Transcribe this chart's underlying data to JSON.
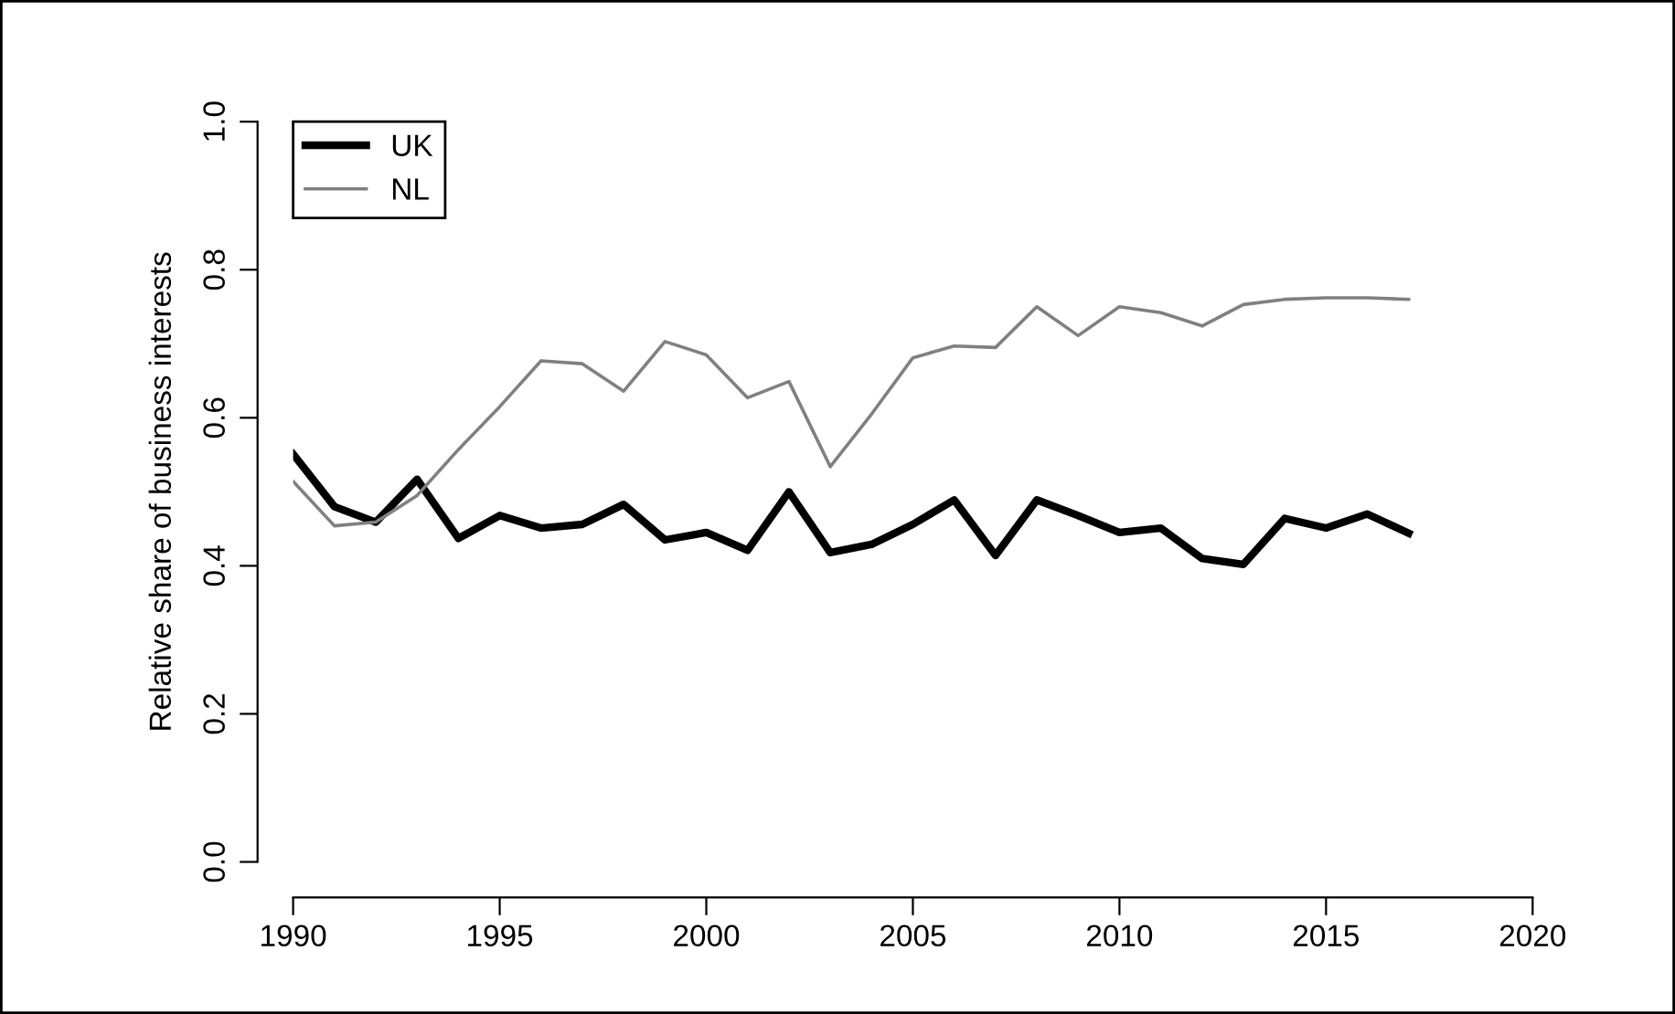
{
  "chart_data": {
    "type": "line",
    "ylabel": "Relative share of business interests",
    "x": [
      1990,
      1991,
      1992,
      1993,
      1994,
      1995,
      1996,
      1997,
      1998,
      1999,
      2000,
      2001,
      2002,
      2003,
      2004,
      2005,
      2006,
      2007,
      2008,
      2009,
      2010,
      2011,
      2012,
      2013,
      2014,
      2015,
      2016,
      2017
    ],
    "series": [
      {
        "name": "UK",
        "color": "#000000",
        "values": [
          0.551,
          0.48,
          0.459,
          0.517,
          0.437,
          0.468,
          0.451,
          0.456,
          0.483,
          0.435,
          0.445,
          0.421,
          0.5,
          0.418,
          0.429,
          0.456,
          0.489,
          0.414,
          0.489,
          0.468,
          0.445,
          0.451,
          0.41,
          0.402,
          0.464,
          0.451,
          0.47,
          0.444
        ]
      },
      {
        "name": "NL",
        "color": "#808080",
        "values": [
          0.514,
          0.454,
          0.459,
          0.495,
          0.557,
          0.615,
          0.677,
          0.673,
          0.636,
          0.703,
          0.685,
          0.627,
          0.649,
          0.534,
          0.605,
          0.681,
          0.697,
          0.695,
          0.75,
          0.711,
          0.75,
          0.742,
          0.724,
          0.753,
          0.76,
          0.762,
          0.762,
          0.76
        ]
      }
    ],
    "xlim": [
      1990,
      2020
    ],
    "xticks": [
      1990,
      1995,
      2000,
      2005,
      2010,
      2015,
      2020
    ],
    "ylim": [
      0,
      1
    ],
    "yticks": [
      {
        "value": 0,
        "label": "0.0"
      },
      {
        "value": 0.2,
        "label": "0.2"
      },
      {
        "value": 0.4,
        "label": "0.4"
      },
      {
        "value": 0.6,
        "label": "0.6"
      },
      {
        "value": 0.8,
        "label": "0.8"
      },
      {
        "value": 1,
        "label": "1.0"
      }
    ],
    "legend": "top left",
    "grid": false,
    "line_style": "solid",
    "marker": "none"
  }
}
